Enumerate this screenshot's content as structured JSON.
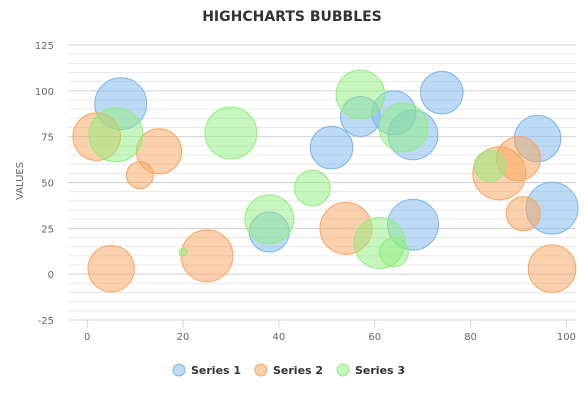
{
  "chart_data": {
    "type": "bubble",
    "title": "HIGHCHARTS BUBBLES",
    "xlabel": "",
    "ylabel": "VALUES",
    "xlim": [
      -4,
      102
    ],
    "ylim": [
      -25,
      125
    ],
    "x_ticks": [
      "0",
      "20",
      "40",
      "60",
      "80",
      "100"
    ],
    "x_tick_values": [
      0,
      20,
      40,
      60,
      80,
      100
    ],
    "y_ticks": [
      "125",
      "100",
      "75",
      "50",
      "25",
      "0",
      "-25"
    ],
    "y_tick_values": [
      125,
      100,
      75,
      50,
      25,
      0,
      -25
    ],
    "grid": "horizontal minor and major lines",
    "legend_position": "bottom-center",
    "series": [
      {
        "name": "Series 1",
        "color": "#7cb5ec",
        "points": [
          {
            "x": 7,
            "y": 93,
            "z": 28
          },
          {
            "x": 94,
            "y": 74,
            "z": 23
          },
          {
            "x": 74,
            "y": 99,
            "z": 20
          },
          {
            "x": 64,
            "y": 88,
            "z": 21
          },
          {
            "x": 57,
            "y": 86,
            "z": 18
          },
          {
            "x": 68,
            "y": 76,
            "z": 26
          },
          {
            "x": 51,
            "y": 69,
            "z": 20
          },
          {
            "x": 97,
            "y": 36,
            "z": 28
          },
          {
            "x": 68,
            "y": 27,
            "z": 27
          },
          {
            "x": 38,
            "y": 23,
            "z": 18
          }
        ]
      },
      {
        "name": "Series 2",
        "color": "#f7a35c",
        "points": [
          {
            "x": 2,
            "y": 75,
            "z": 24
          },
          {
            "x": 15,
            "y": 67,
            "z": 22
          },
          {
            "x": 11,
            "y": 54,
            "z": 10
          },
          {
            "x": 86,
            "y": 55,
            "z": 29
          },
          {
            "x": 90,
            "y": 63,
            "z": 21
          },
          {
            "x": 91,
            "y": 33,
            "z": 14
          },
          {
            "x": 54,
            "y": 25,
            "z": 28
          },
          {
            "x": 25,
            "y": 10,
            "z": 28
          },
          {
            "x": 5,
            "y": 3,
            "z": 23
          },
          {
            "x": 97,
            "y": 3,
            "z": 24
          }
        ]
      },
      {
        "name": "Series 3",
        "color": "#90ed7d",
        "points": [
          {
            "x": 6,
            "y": 76,
            "z": 30
          },
          {
            "x": 30,
            "y": 77,
            "z": 28
          },
          {
            "x": 57,
            "y": 98,
            "z": 25
          },
          {
            "x": 66,
            "y": 80,
            "z": 25
          },
          {
            "x": 47,
            "y": 47,
            "z": 15
          },
          {
            "x": 38,
            "y": 30,
            "z": 25
          },
          {
            "x": 61,
            "y": 17,
            "z": 27
          },
          {
            "x": 64,
            "y": 12,
            "z": 11
          },
          {
            "x": 84,
            "y": 59,
            "z": 12
          },
          {
            "x": 20,
            "y": 12,
            "z": 4
          }
        ]
      }
    ]
  }
}
